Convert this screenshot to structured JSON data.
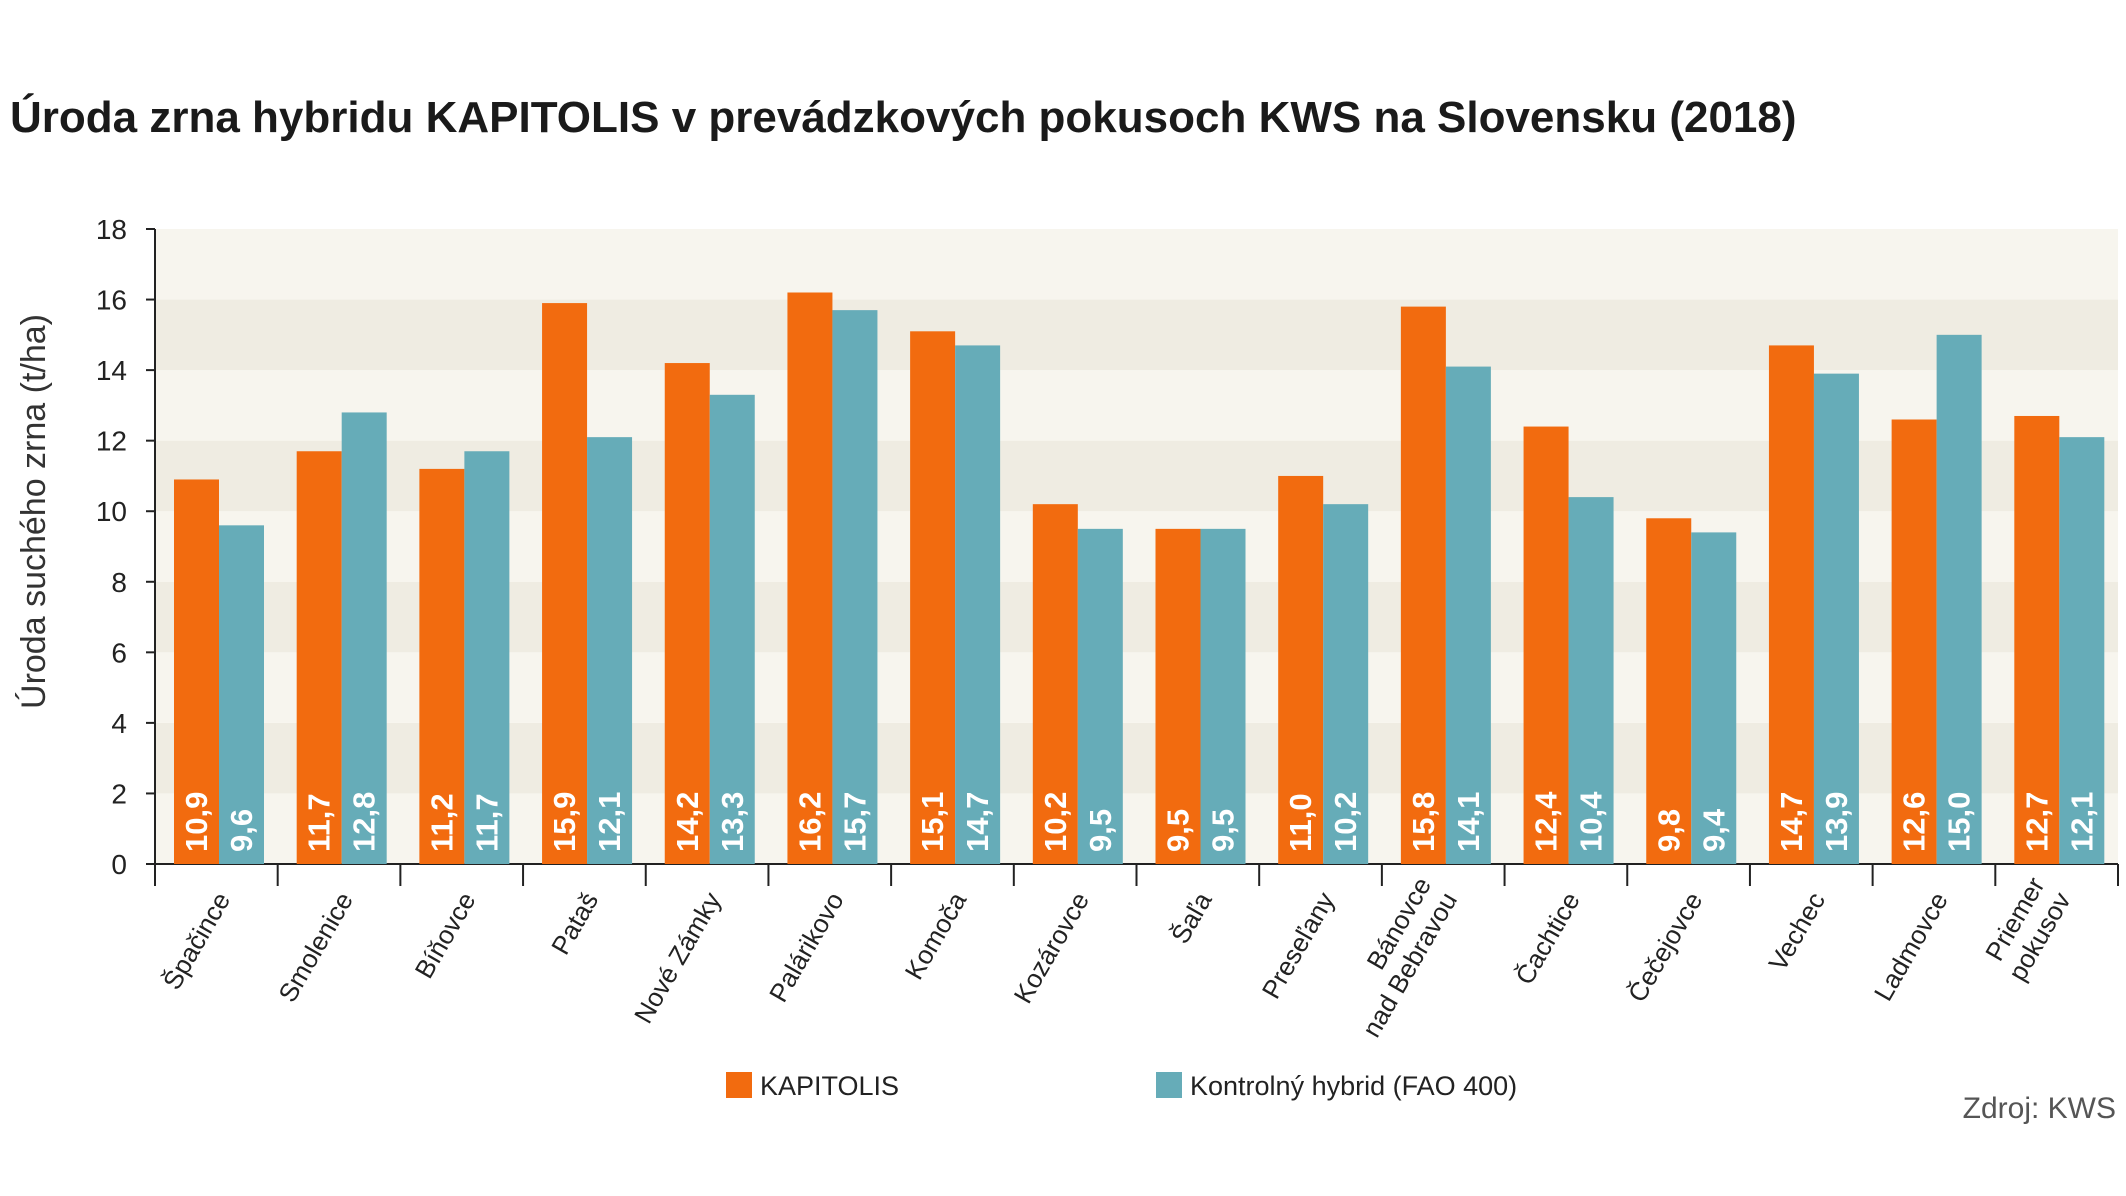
{
  "chart_data": {
    "type": "bar",
    "title": "Úroda zrna hybridu KAPITOLIS v prevádzkových pokusoch KWS na Slovensku (2018)",
    "ylabel": "Úroda suchého zrna (t/ha)",
    "xlabel": "",
    "ylim": [
      0,
      18
    ],
    "yticks": [
      "0",
      "2",
      "4",
      "6",
      "8",
      "10",
      "12",
      "14",
      "16",
      "18"
    ],
    "categories": [
      [
        "Špačince"
      ],
      [
        "Smolenice"
      ],
      [
        "Bíňovce"
      ],
      [
        "Pataš"
      ],
      [
        "Nové Zámky"
      ],
      [
        "Palárikovo"
      ],
      [
        "Komoča"
      ],
      [
        "Kozárovce"
      ],
      [
        "Šaľa"
      ],
      [
        "Preseľany"
      ],
      [
        "Bánovce",
        "nad Bebravou"
      ],
      [
        "Čachtice"
      ],
      [
        "Čečejovce"
      ],
      [
        "Vechec"
      ],
      [
        "Ladmovce"
      ],
      [
        "Priemer",
        "pokusov"
      ]
    ],
    "series": [
      {
        "name": "KAPITOLIS",
        "color": "#f26b0f",
        "values": [
          10.9,
          11.7,
          11.2,
          15.9,
          14.2,
          16.2,
          15.1,
          10.2,
          9.5,
          11.0,
          15.8,
          12.4,
          9.8,
          14.7,
          12.6,
          12.7
        ],
        "labels": [
          "10,9",
          "11,7",
          "11,2",
          "15,9",
          "14,2",
          "16,2",
          "15,1",
          "10,2",
          "9,5",
          "11,0",
          "15,8",
          "12,4",
          "9,8",
          "14,7",
          "12,6",
          "12,7"
        ]
      },
      {
        "name": "Kontrolný hybrid (FAO 400)",
        "color": "#66acb8",
        "values": [
          9.6,
          12.8,
          11.7,
          12.1,
          13.3,
          15.7,
          14.7,
          9.5,
          9.5,
          10.2,
          14.1,
          10.4,
          9.4,
          13.9,
          15.0,
          12.1
        ],
        "labels": [
          "9,6",
          "12,8",
          "11,7",
          "12,1",
          "13,3",
          "15,7",
          "14,7",
          "9,5",
          "9,5",
          "10,2",
          "14,1",
          "10,4",
          "9,4",
          "13,9",
          "15,0",
          "12,1"
        ]
      }
    ],
    "grid": "alternating bands",
    "legend_position": "bottom",
    "source": "Zdroj: KWS"
  }
}
